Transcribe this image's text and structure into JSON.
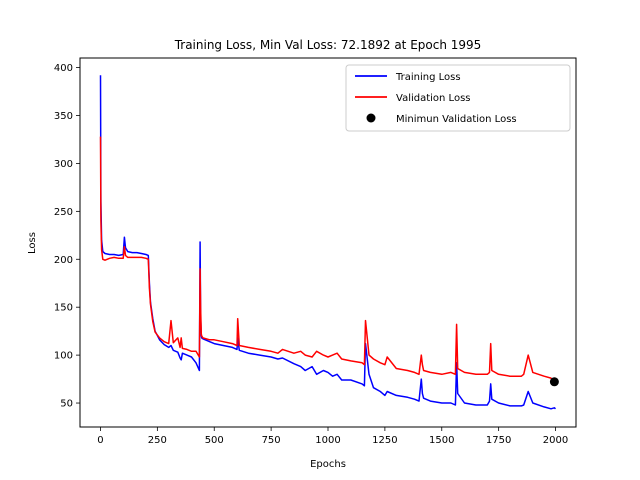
{
  "chart_data": {
    "type": "line",
    "title": "Training Loss, Min Val Loss: 72.1892 at Epoch 1995",
    "xlabel": "Epochs",
    "ylabel": "Loss",
    "xlim": [
      -90,
      2090
    ],
    "ylim": [
      25,
      410
    ],
    "xticks": [
      0,
      250,
      500,
      750,
      1000,
      1250,
      1500,
      1750,
      2000
    ],
    "yticks": [
      50,
      100,
      150,
      200,
      250,
      300,
      350,
      400
    ],
    "grid": false,
    "legend_position": "top-right",
    "series": [
      {
        "name": "Training Loss",
        "color": "#0000ff",
        "x": [
          0,
          2,
          5,
          10,
          20,
          40,
          60,
          80,
          100,
          105,
          110,
          120,
          140,
          160,
          180,
          200,
          210,
          215,
          220,
          230,
          240,
          260,
          280,
          300,
          310,
          320,
          340,
          350,
          355,
          360,
          380,
          400,
          420,
          435,
          438,
          440,
          443,
          445,
          450,
          480,
          500,
          540,
          580,
          600,
          603,
          610,
          650,
          700,
          750,
          780,
          800,
          850,
          880,
          900,
          930,
          950,
          980,
          1000,
          1020,
          1040,
          1060,
          1100,
          1150,
          1160,
          1165,
          1180,
          1200,
          1230,
          1250,
          1260,
          1300,
          1350,
          1380,
          1400,
          1410,
          1415,
          1420,
          1450,
          1500,
          1540,
          1560,
          1565,
          1570,
          1600,
          1650,
          1700,
          1710,
          1715,
          1720,
          1750,
          1800,
          1850,
          1860,
          1880,
          1900,
          1950,
          1980,
          1995,
          2000
        ],
        "y": [
          392,
          260,
          220,
          208,
          206,
          205,
          205,
          204,
          205,
          223,
          212,
          208,
          207,
          207,
          206,
          205,
          204,
          175,
          155,
          138,
          125,
          116,
          111,
          108,
          110,
          105,
          103,
          97,
          95,
          102,
          100,
          98,
          92,
          84,
          218,
          140,
          120,
          118,
          117,
          114,
          112,
          110,
          108,
          106,
          118,
          105,
          102,
          100,
          98,
          96,
          97,
          91,
          88,
          84,
          88,
          80,
          84,
          82,
          78,
          80,
          74,
          74,
          70,
          68,
          112,
          80,
          66,
          62,
          58,
          62,
          58,
          56,
          54,
          52,
          75,
          60,
          55,
          52,
          50,
          50,
          48,
          92,
          60,
          50,
          48,
          48,
          52,
          70,
          54,
          50,
          47,
          47,
          48,
          62,
          50,
          46,
          44,
          45,
          44
        ]
      },
      {
        "name": "Validation Loss",
        "color": "#ff0000",
        "x": [
          0,
          2,
          5,
          10,
          20,
          40,
          60,
          80,
          100,
          105,
          110,
          120,
          140,
          160,
          180,
          200,
          210,
          215,
          220,
          230,
          240,
          260,
          280,
          300,
          310,
          320,
          340,
          350,
          355,
          360,
          380,
          400,
          420,
          435,
          438,
          440,
          443,
          445,
          450,
          480,
          500,
          540,
          580,
          600,
          603,
          610,
          650,
          700,
          750,
          780,
          800,
          850,
          880,
          900,
          930,
          950,
          980,
          1000,
          1020,
          1040,
          1060,
          1100,
          1150,
          1160,
          1165,
          1180,
          1200,
          1230,
          1250,
          1260,
          1300,
          1350,
          1380,
          1400,
          1410,
          1415,
          1420,
          1450,
          1500,
          1540,
          1560,
          1565,
          1570,
          1600,
          1650,
          1700,
          1710,
          1715,
          1720,
          1750,
          1800,
          1850,
          1860,
          1880,
          1900,
          1950,
          1980,
          1995,
          2000
        ],
        "y": [
          328,
          240,
          210,
          200,
          199,
          201,
          202,
          201,
          201,
          213,
          204,
          202,
          202,
          202,
          202,
          201,
          200,
          170,
          153,
          135,
          124,
          118,
          114,
          112,
          136,
          113,
          118,
          108,
          118,
          107,
          106,
          104,
          104,
          98,
          190,
          150,
          122,
          120,
          118,
          116,
          116,
          114,
          112,
          110,
          138,
          110,
          108,
          106,
          104,
          102,
          106,
          102,
          104,
          100,
          98,
          104,
          100,
          98,
          100,
          102,
          96,
          94,
          92,
          90,
          136,
          100,
          96,
          92,
          90,
          98,
          86,
          84,
          82,
          80,
          100,
          90,
          84,
          82,
          80,
          82,
          80,
          132,
          86,
          82,
          80,
          80,
          82,
          112,
          84,
          80,
          78,
          78,
          80,
          100,
          82,
          78,
          76,
          72.1892,
          76
        ]
      }
    ],
    "min_marker": {
      "name": "Minimun Validation Loss",
      "x": 1995,
      "y": 72.1892,
      "color": "#000000"
    }
  }
}
